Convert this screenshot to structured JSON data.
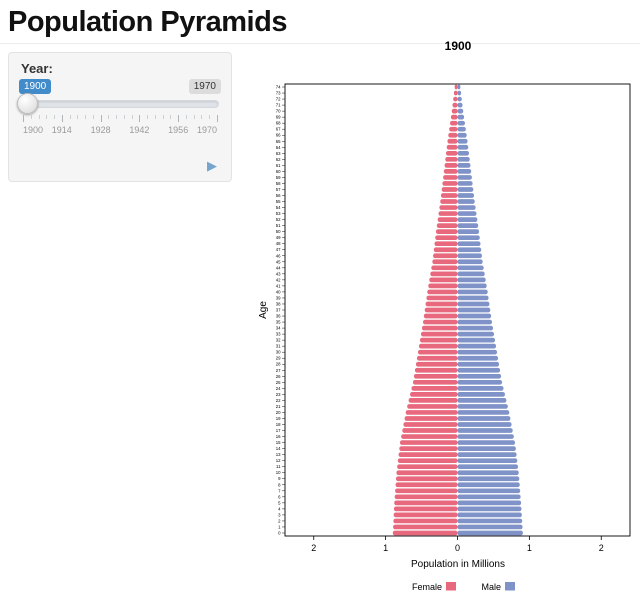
{
  "page": {
    "title": "Population Pyramids"
  },
  "controls": {
    "year_label": "Year:",
    "current_value": "1900",
    "max_value": "1970",
    "ticks": [
      "1900",
      "1914",
      "1928",
      "1942",
      "1956",
      "1970"
    ],
    "play_icon": "▶"
  },
  "chart_data": {
    "type": "bar",
    "subtype": "population-pyramid",
    "title": "1900",
    "xlabel": "Population in Millions",
    "ylabel": "Age",
    "xlim": [
      -2.4,
      2.4
    ],
    "x_tick_positions": [
      -2,
      -1,
      0,
      1,
      2
    ],
    "x_tick_labels": [
      "2",
      "1",
      "0",
      "1",
      "2"
    ],
    "legend_position": "bottom",
    "ages": [
      0,
      1,
      2,
      3,
      4,
      5,
      6,
      7,
      8,
      9,
      10,
      11,
      12,
      13,
      14,
      15,
      16,
      17,
      18,
      19,
      20,
      21,
      22,
      23,
      24,
      25,
      26,
      27,
      28,
      29,
      30,
      31,
      32,
      33,
      34,
      35,
      36,
      37,
      38,
      39,
      40,
      41,
      42,
      43,
      44,
      45,
      46,
      47,
      48,
      49,
      50,
      51,
      52,
      53,
      54,
      55,
      56,
      57,
      58,
      59,
      60,
      61,
      62,
      63,
      64,
      65,
      66,
      67,
      68,
      69,
      70,
      71,
      72,
      73,
      74
    ],
    "series": [
      {
        "name": "Female",
        "side": "left",
        "color": "#e8697d",
        "values": [
          0.9,
          0.896,
          0.892,
          0.888,
          0.884,
          0.88,
          0.874,
          0.868,
          0.862,
          0.856,
          0.85,
          0.84,
          0.83,
          0.82,
          0.81,
          0.8,
          0.784,
          0.768,
          0.752,
          0.736,
          0.72,
          0.7,
          0.68,
          0.66,
          0.64,
          0.62,
          0.606,
          0.592,
          0.578,
          0.564,
          0.55,
          0.536,
          0.522,
          0.508,
          0.494,
          0.48,
          0.468,
          0.456,
          0.444,
          0.432,
          0.42,
          0.406,
          0.392,
          0.378,
          0.364,
          0.35,
          0.34,
          0.33,
          0.32,
          0.31,
          0.3,
          0.288,
          0.276,
          0.264,
          0.252,
          0.24,
          0.23,
          0.22,
          0.21,
          0.2,
          0.19,
          0.18,
          0.17,
          0.16,
          0.15,
          0.14,
          0.128,
          0.116,
          0.104,
          0.092,
          0.08,
          0.07,
          0.06,
          0.05,
          0.04
        ]
      },
      {
        "name": "Male",
        "side": "right",
        "color": "#8093c8",
        "values": [
          0.91,
          0.905,
          0.9,
          0.895,
          0.89,
          0.885,
          0.878,
          0.872,
          0.866,
          0.86,
          0.852,
          0.842,
          0.832,
          0.822,
          0.812,
          0.8,
          0.784,
          0.768,
          0.752,
          0.736,
          0.72,
          0.7,
          0.68,
          0.66,
          0.64,
          0.62,
          0.606,
          0.592,
          0.578,
          0.564,
          0.55,
          0.536,
          0.522,
          0.508,
          0.494,
          0.48,
          0.468,
          0.456,
          0.444,
          0.432,
          0.42,
          0.406,
          0.392,
          0.378,
          0.364,
          0.35,
          0.34,
          0.33,
          0.32,
          0.31,
          0.3,
          0.288,
          0.276,
          0.264,
          0.252,
          0.24,
          0.23,
          0.22,
          0.21,
          0.2,
          0.19,
          0.18,
          0.17,
          0.16,
          0.15,
          0.14,
          0.128,
          0.116,
          0.104,
          0.092,
          0.08,
          0.07,
          0.06,
          0.05,
          0.04
        ]
      }
    ]
  }
}
